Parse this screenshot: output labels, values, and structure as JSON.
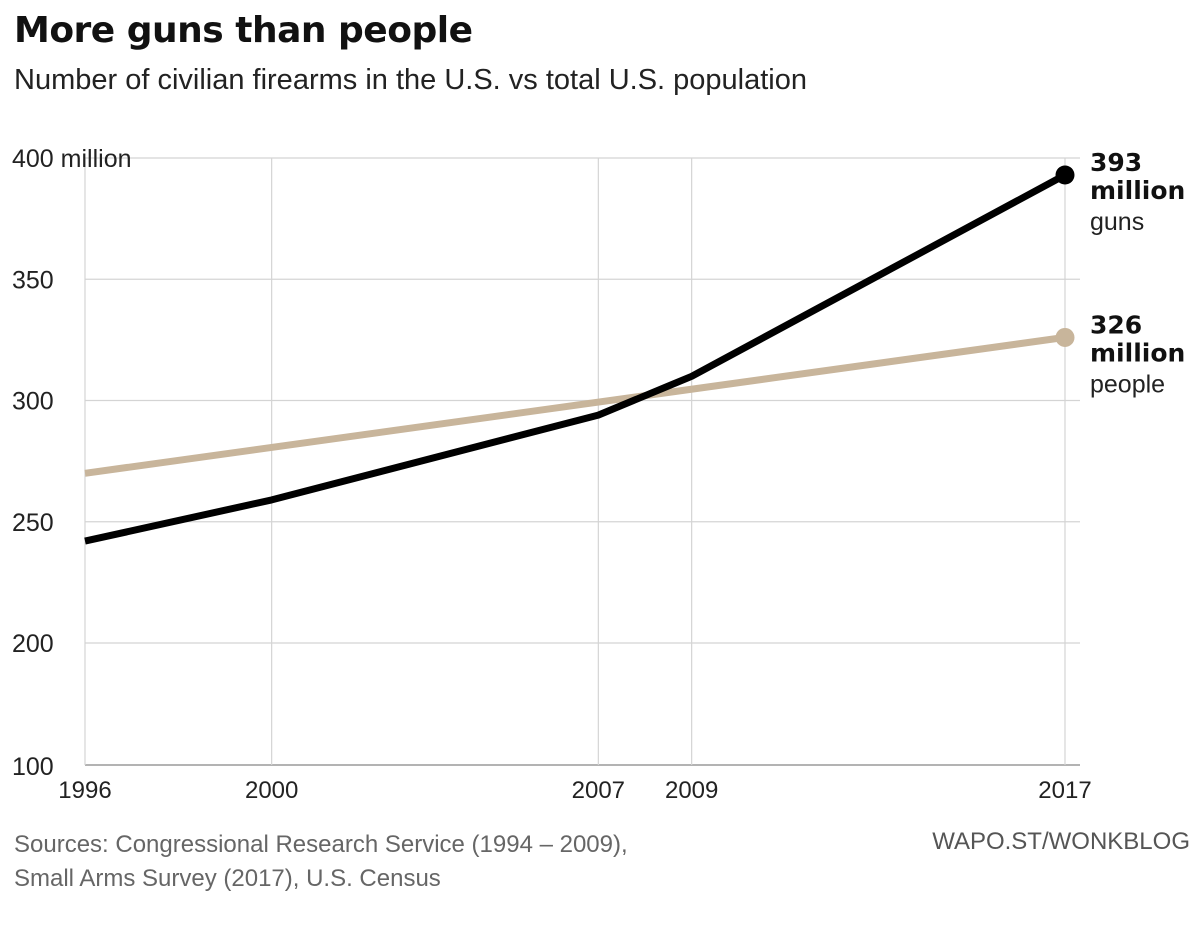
{
  "header": {
    "title": "More guns than people",
    "subtitle": "Number of civilian firearms in the U.S. vs total U.S. population"
  },
  "footer": {
    "sources_line1": "Sources: Congressional Research Service (1994 – 2009),",
    "sources_line2": "Small Arms Survey (2017), U.S. Census",
    "credit": "WAPO.ST/WONKBLOG"
  },
  "chart_data": {
    "type": "line",
    "title": "More guns than people",
    "subtitle": "Number of civilian firearms in the U.S. vs total U.S. population",
    "xlabel": "",
    "ylabel": "",
    "xlim": [
      1996,
      2017
    ],
    "ylim": [
      100,
      400
    ],
    "y_axis_break": "100 to 200",
    "x_ticks": [
      {
        "value": 1996,
        "label": "1996"
      },
      {
        "value": 2000,
        "label": "2000"
      },
      {
        "value": 2007,
        "label": "2007"
      },
      {
        "value": 2009,
        "label": "2009"
      },
      {
        "value": 2017,
        "label": "2017"
      }
    ],
    "y_ticks": [
      {
        "value": 400,
        "label": "400 million"
      },
      {
        "value": 350,
        "label": "350"
      },
      {
        "value": 300,
        "label": "300"
      },
      {
        "value": 250,
        "label": "250"
      },
      {
        "value": 200,
        "label": "200"
      },
      {
        "value": 100,
        "label": "100"
      }
    ],
    "grid": true,
    "series": [
      {
        "name": "guns",
        "color": "#000000",
        "x": [
          1996,
          2000,
          2007,
          2009,
          2017
        ],
        "values": [
          242,
          259,
          294,
          310,
          393
        ],
        "end_label": {
          "value": "393",
          "unit": "million",
          "name": "guns"
        }
      },
      {
        "name": "people",
        "color": "#c8b59b",
        "x": [
          1996,
          2017
        ],
        "values": [
          270,
          326
        ],
        "end_label": {
          "value": "326",
          "unit": "million",
          "name": "people"
        }
      }
    ]
  }
}
